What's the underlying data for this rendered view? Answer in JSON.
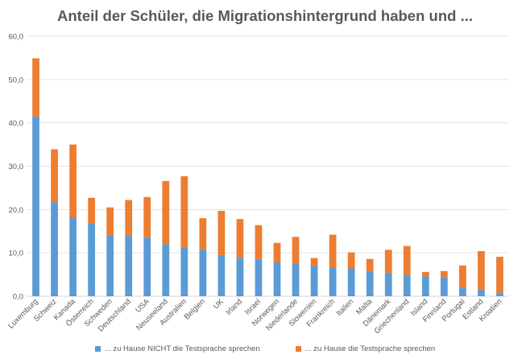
{
  "chart_data": {
    "type": "bar",
    "stacked": true,
    "title": "Anteil der Schüler, die Migrationshintergrund haben und ...",
    "xlabel": "",
    "ylabel": "",
    "ylim": [
      0,
      60
    ],
    "yticks": [
      "0,0",
      "10,0",
      "20,0",
      "30,0",
      "40,0",
      "50,0",
      "60,0"
    ],
    "grid": true,
    "legend_position": "bottom",
    "categories": [
      "Luxemburg",
      "Schweiz",
      "Kanada",
      "Österreich",
      "Schweden",
      "Deutschland",
      "USA",
      "Neuseeland",
      "Australien",
      "Belgien",
      "UK",
      "Irland",
      "Israel",
      "Norwegen",
      "Niederlande",
      "Slowenien",
      "Frankreich",
      "Italien",
      "Malta",
      "Dänemark",
      "Griechenland",
      "Island",
      "Finnland",
      "Portugal",
      "Estland",
      "Kroatien"
    ],
    "series": [
      {
        "name": "... zu Hause NICHT die Testsprache sprechen",
        "color": "#5b9bd5",
        "values": [
          41.5,
          21.7,
          18.2,
          16.8,
          14.0,
          13.9,
          13.6,
          12.0,
          11.2,
          10.8,
          9.5,
          8.9,
          8.5,
          7.8,
          7.6,
          7.0,
          6.6,
          6.4,
          5.7,
          5.4,
          4.9,
          4.6,
          4.3,
          2.0,
          1.4,
          0.8
        ]
      },
      {
        "name": "... zu Hause die Testsprache sprechen",
        "color": "#ed7d31",
        "values": [
          13.4,
          12.2,
          16.8,
          5.9,
          6.5,
          8.3,
          9.3,
          14.6,
          16.5,
          7.2,
          10.2,
          8.9,
          7.9,
          4.5,
          6.1,
          1.8,
          7.6,
          3.7,
          2.9,
          5.3,
          6.7,
          1.0,
          1.5,
          5.1,
          9.0,
          8.3
        ]
      }
    ]
  }
}
